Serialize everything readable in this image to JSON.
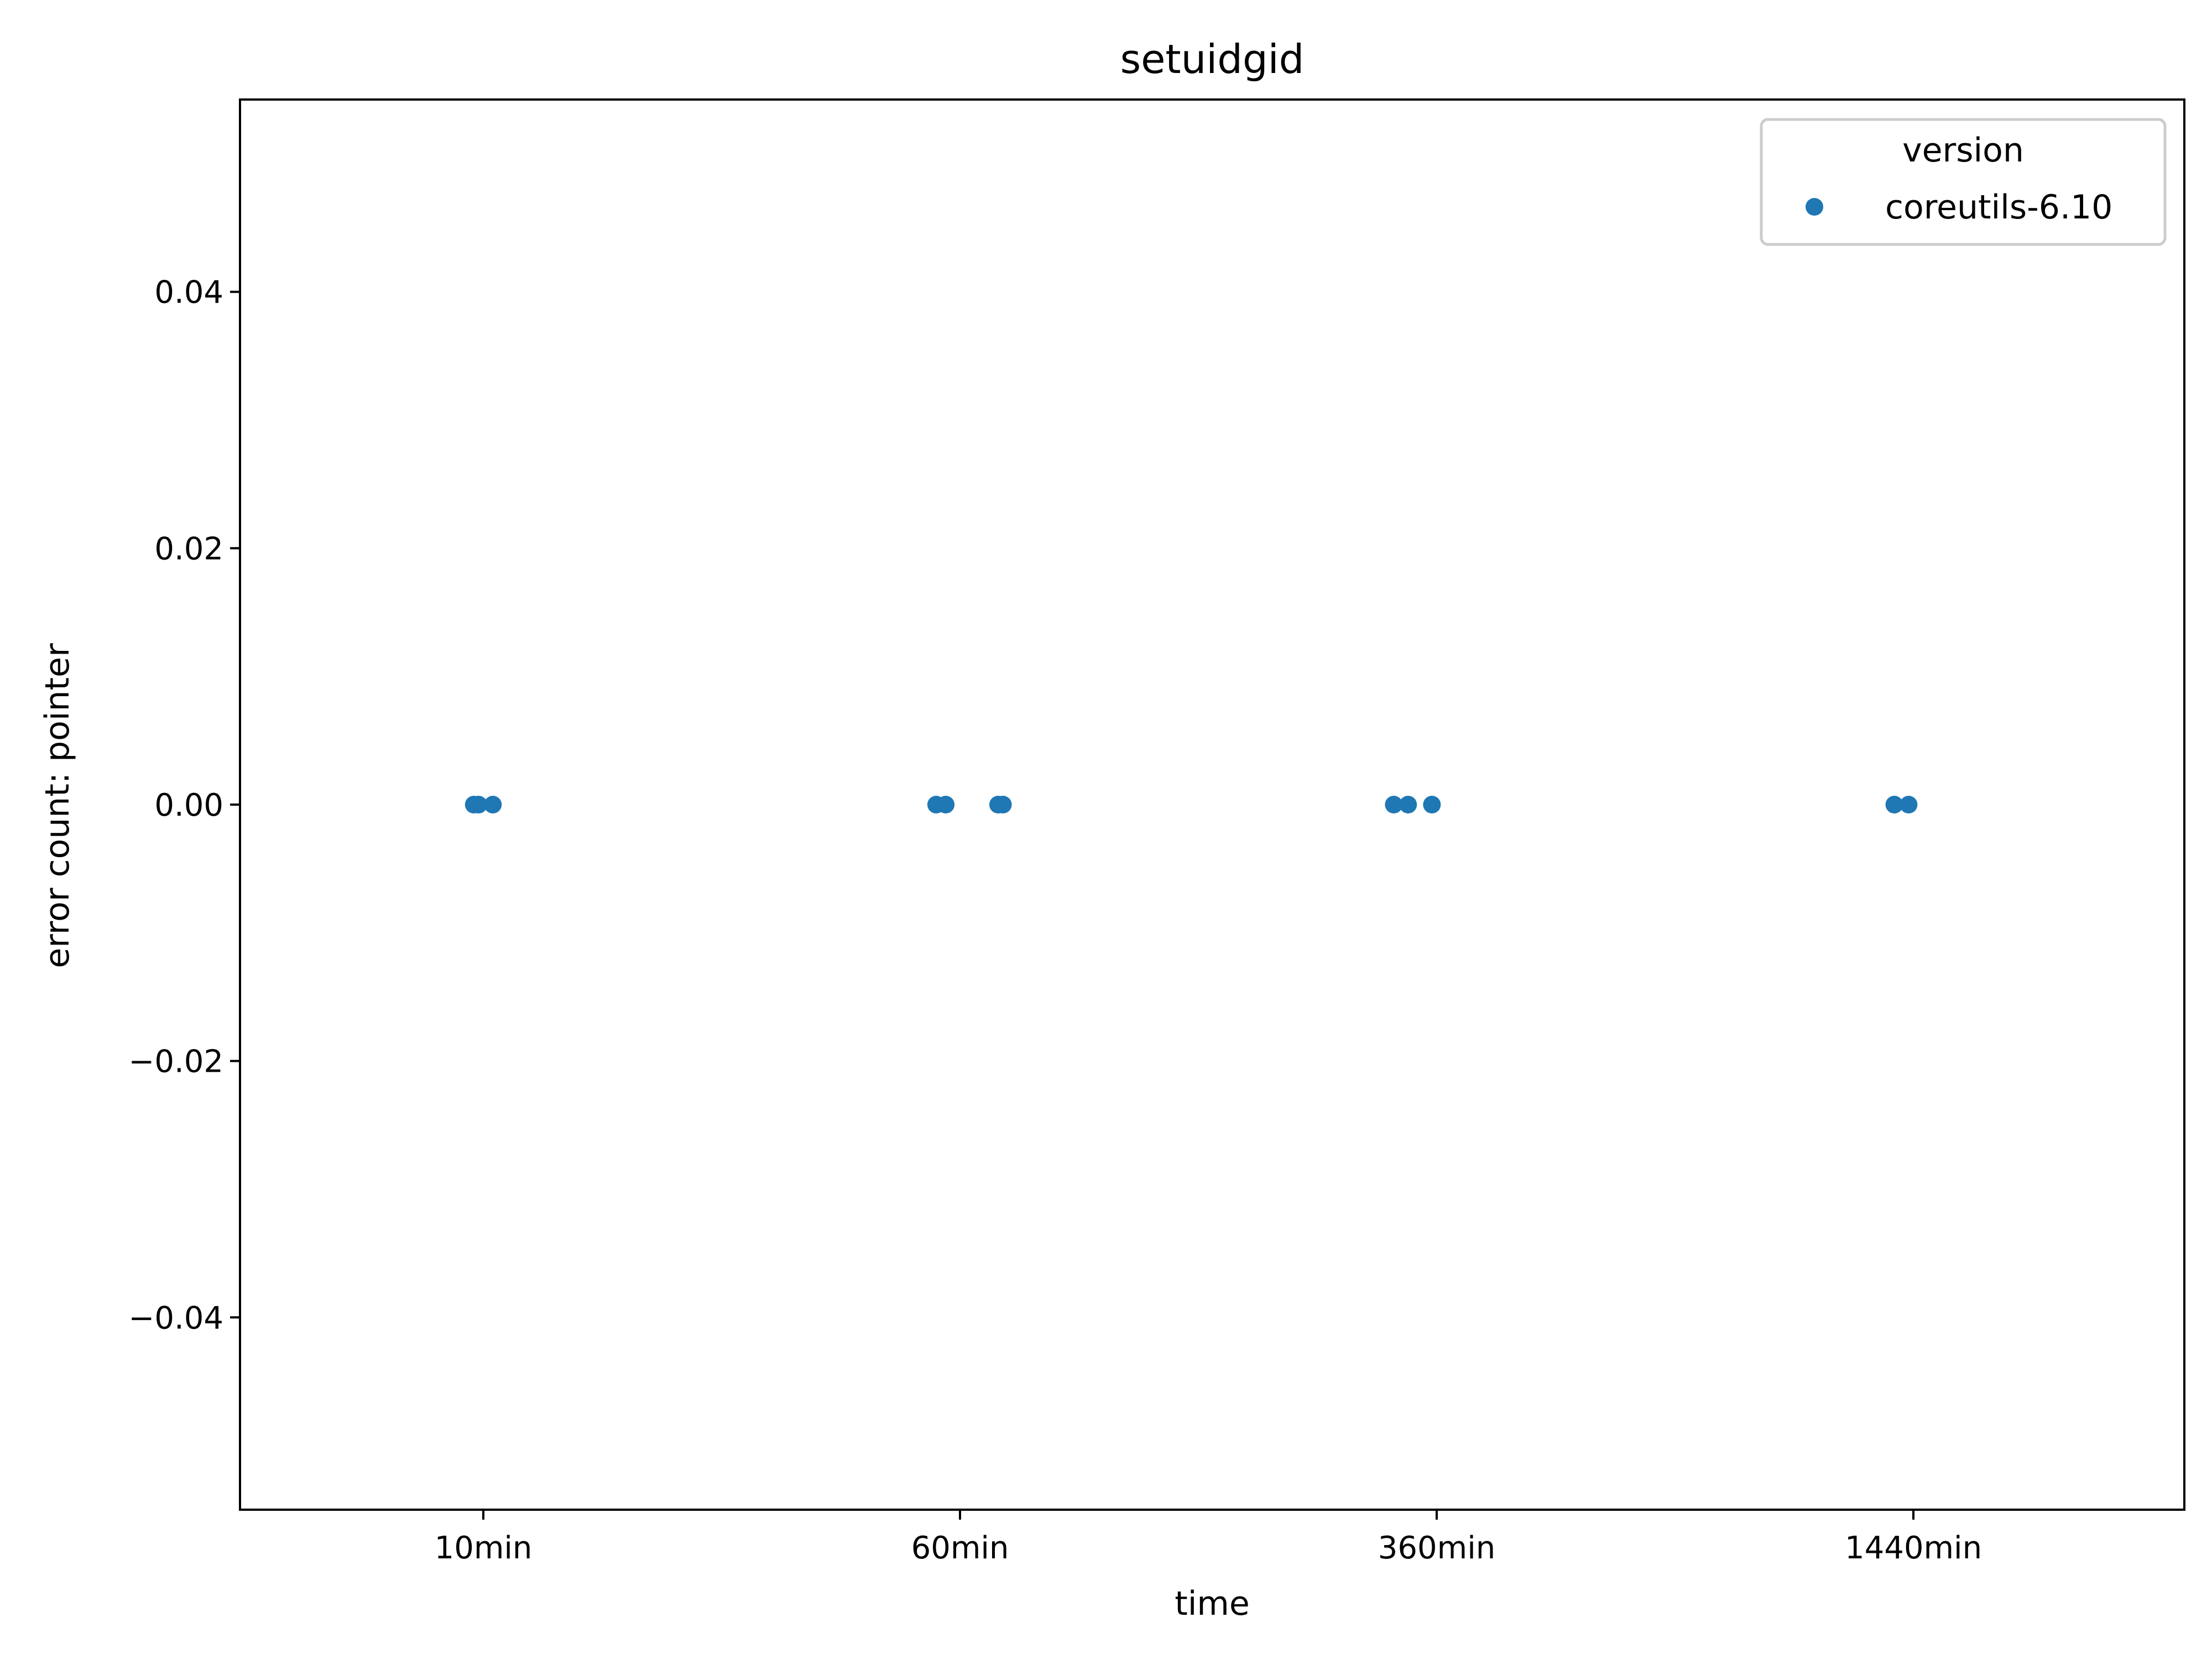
{
  "chart_data": {
    "type": "scatter",
    "title": "setuidgid",
    "xlabel": "time",
    "ylabel": "error count: pointer",
    "x_categories": [
      "10min",
      "60min",
      "360min",
      "1440min"
    ],
    "ylim": [
      -0.055,
      0.055
    ],
    "yticks": [
      -0.04,
      -0.02,
      0.0,
      0.02,
      0.04
    ],
    "ytick_labels": [
      "−0.04",
      "−0.02",
      "0.00",
      "0.02",
      "0.04"
    ],
    "grid": false,
    "legend": {
      "title": "version",
      "placement": "top-right",
      "entries": [
        "coreutils-6.10"
      ]
    },
    "series": [
      {
        "name": "coreutils-6.10",
        "color": "#1f77b4",
        "points": [
          {
            "x": "10min",
            "y": 0.0,
            "jitter": -0.02
          },
          {
            "x": "10min",
            "y": 0.0,
            "jitter": -0.01
          },
          {
            "x": "10min",
            "y": 0.0,
            "jitter": 0.02
          },
          {
            "x": "60min",
            "y": 0.0,
            "jitter": -0.05
          },
          {
            "x": "60min",
            "y": 0.0,
            "jitter": -0.03
          },
          {
            "x": "60min",
            "y": 0.0,
            "jitter": 0.08
          },
          {
            "x": "60min",
            "y": 0.0,
            "jitter": 0.09
          },
          {
            "x": "360min",
            "y": 0.0,
            "jitter": -0.09
          },
          {
            "x": "360min",
            "y": 0.0,
            "jitter": -0.06
          },
          {
            "x": "360min",
            "y": 0.0,
            "jitter": -0.01
          },
          {
            "x": "1440min",
            "y": 0.0,
            "jitter": -0.04
          },
          {
            "x": "1440min",
            "y": 0.0,
            "jitter": -0.01
          }
        ]
      }
    ]
  }
}
